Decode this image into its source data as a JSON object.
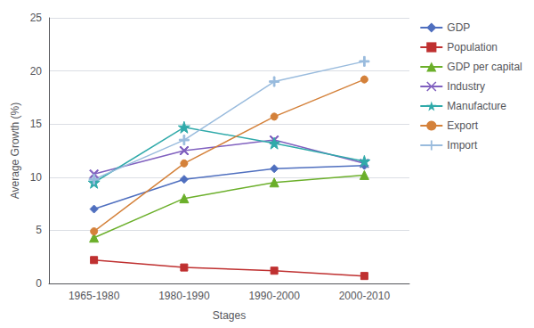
{
  "chart_data": {
    "type": "line",
    "categories": [
      "1965-1980",
      "1980-1990",
      "1990-2000",
      "2000-2010"
    ],
    "series": [
      {
        "name": "GDP",
        "values": [
          7.0,
          9.8,
          10.8,
          11.1
        ],
        "color": "#4F6FBF",
        "marker": "diamond"
      },
      {
        "name": "Population",
        "values": [
          2.2,
          1.5,
          1.2,
          0.7
        ],
        "color": "#BF3030",
        "marker": "square"
      },
      {
        "name": "GDP per capital",
        "values": [
          4.3,
          8.0,
          9.5,
          10.2
        ],
        "color": "#6BAF2A",
        "marker": "triangle"
      },
      {
        "name": "Industry",
        "values": [
          10.3,
          12.5,
          13.5,
          11.3
        ],
        "color": "#8060BF",
        "marker": "x"
      },
      {
        "name": "Manufacture",
        "values": [
          9.5,
          14.7,
          13.2,
          11.5
        ],
        "color": "#30AAAA",
        "marker": "star"
      },
      {
        "name": "Export",
        "values": [
          4.9,
          11.3,
          15.7,
          19.2
        ],
        "color": "#D4813A",
        "marker": "circle"
      },
      {
        "name": "Import",
        "values": [
          9.8,
          13.5,
          19.0,
          20.9
        ],
        "color": "#99BBDD",
        "marker": "plus"
      }
    ],
    "xlabel": "Stages",
    "ylabel": "Average Growth (%)",
    "ylim": [
      0,
      25
    ],
    "yticks": [
      0,
      5,
      10,
      15,
      20,
      25
    ],
    "grid": true,
    "legend": "right"
  }
}
